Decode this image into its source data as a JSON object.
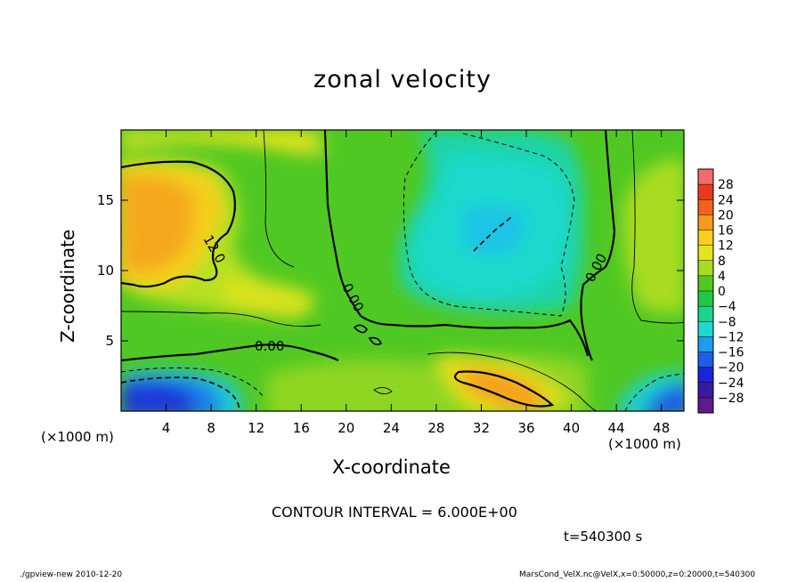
{
  "chart_data": {
    "type": "heatmap",
    "title": "zonal velocity",
    "xlabel": "X-coordinate",
    "ylabel": "Z-coordinate",
    "x_unit": "(×1000 m)",
    "y_unit": "(×1000 m)",
    "xlim": [
      0,
      50
    ],
    "ylim": [
      0,
      20
    ],
    "x_ticks": [
      4,
      8,
      12,
      16,
      20,
      24,
      28,
      32,
      36,
      40,
      44,
      48
    ],
    "y_ticks": [
      5,
      10,
      15
    ],
    "colorbar": {
      "levels": [
        28,
        24,
        20,
        16,
        12,
        8,
        4,
        0,
        -4,
        -8,
        -12,
        -16,
        -20,
        -24,
        -28
      ],
      "colors": [
        "#f26b6b",
        "#ea3a1e",
        "#f0621a",
        "#f59a1c",
        "#f8cf1e",
        "#e3e61d",
        "#a8dc22",
        "#50c823",
        "#21c848",
        "#1ed28e",
        "#1ed9cc",
        "#1e9ded",
        "#1d5fe4",
        "#1c24d8",
        "#3a1a9c",
        "#5c1a8c"
      ]
    },
    "contour_labels": [
      "12.0",
      "0.00",
      "0.00",
      "0.00"
    ],
    "contour_interval_text": "CONTOUR INTERVAL = 6.000E+00",
    "time_text": "t=540300 s"
  },
  "footer": {
    "left": "./gpview-new  2010-12-20",
    "right": "MarsCond_VelX.nc@VelX,x=0:50000,z=0:20000,t=540300"
  },
  "legend_unit_left": "(×1000 m)",
  "legend_unit_right": "(×1000 m)"
}
